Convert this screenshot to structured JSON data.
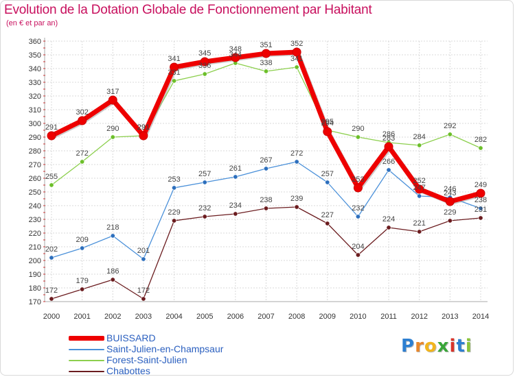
{
  "title": "Evolution de la Dotation Globale de Fonctionnement par Habitant",
  "subtitle": "(en € et par an)",
  "logo": {
    "letters": [
      "P",
      "r",
      "o",
      "x",
      "i",
      "t",
      "i"
    ],
    "colors": [
      "#2d7fd1",
      "#e8872a",
      "#f2b51d",
      "#3aa63a",
      "#d9342b",
      "#2d7fd1",
      "#8ac33a"
    ]
  },
  "chart_data": {
    "type": "line",
    "x": [
      "2000",
      "2001",
      "2002",
      "2003",
      "2004",
      "2005",
      "2006",
      "2007",
      "2008",
      "2009",
      "2010",
      "2011",
      "2012",
      "2013",
      "2014"
    ],
    "ylim": [
      170,
      360
    ],
    "yticks": [
      170,
      180,
      190,
      200,
      210,
      220,
      230,
      240,
      250,
      260,
      270,
      280,
      290,
      300,
      310,
      320,
      330,
      340,
      350,
      360
    ],
    "grid": true,
    "legend_position": "bottom-left",
    "series": [
      {
        "name": "Chabottes",
        "color": "#6b1c1f",
        "marker": "#6b1c1f",
        "width": 1.3,
        "values": [
          172,
          179,
          186,
          172,
          229,
          232,
          234,
          238,
          239,
          227,
          204,
          224,
          221,
          229,
          231
        ]
      },
      {
        "name": "Saint-Julien-en-Champsaur",
        "color": "#4a90d9",
        "marker": "#2d6fbd",
        "width": 1.3,
        "values": [
          202,
          209,
          218,
          201,
          253,
          257,
          261,
          267,
          272,
          257,
          232,
          266,
          247,
          246,
          238
        ]
      },
      {
        "name": "Forest-Saint-Julien",
        "color": "#8ccf4d",
        "marker": "#6cbf2a",
        "width": 1.3,
        "values": [
          255,
          272,
          290,
          291,
          331,
          336,
          344,
          338,
          341,
          295,
          290,
          286,
          284,
          292,
          282
        ]
      },
      {
        "name": "BUISSARD",
        "color": "#ee0000",
        "marker": "#ee0000",
        "width": 7,
        "values": [
          291,
          302,
          317,
          291,
          341,
          345,
          348,
          351,
          352,
          294,
          253,
          283,
          252,
          243,
          249
        ]
      }
    ],
    "legend_order": [
      "BUISSARD",
      "Saint-Julien-en-Champsaur",
      "Forest-Saint-Julien",
      "Chabottes"
    ]
  }
}
